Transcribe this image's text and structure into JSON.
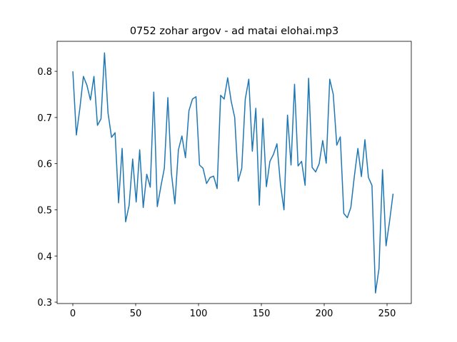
{
  "chart_data": {
    "type": "line",
    "title": "0752 zohar argov - ad matai elohai.mp3",
    "x": [
      0,
      2.8,
      5.6,
      8.4,
      11.2,
      14,
      16.8,
      19.6,
      22.4,
      25.2,
      28,
      30.8,
      33.6,
      36.4,
      39.2,
      42,
      44.8,
      47.6,
      50.4,
      53.2,
      56,
      58.8,
      61.6,
      64.4,
      67.2,
      70,
      72.8,
      75.6,
      78.4,
      81.2,
      84,
      86.8,
      89.6,
      92.4,
      95.2,
      98,
      100.8,
      103.6,
      106.4,
      109.2,
      112,
      114.8,
      117.6,
      120.4,
      123.2,
      126,
      128.8,
      131.6,
      134.4,
      137.2,
      140,
      142.8,
      145.6,
      148.4,
      151.2,
      154,
      156.8,
      159.6,
      162.4,
      165.2,
      168,
      170.8,
      173.6,
      176.4,
      179.2,
      182,
      184.8,
      187.6,
      190.4,
      193.2,
      196,
      198.8,
      201.6,
      204.4,
      207.2,
      210,
      212.8,
      215.6,
      218.4,
      221.2,
      224,
      226.8,
      229.6,
      232.4,
      235.2,
      238,
      240.8,
      243.6,
      246.4,
      249.2,
      252,
      254.8
    ],
    "series": [
      {
        "color": "#1f77b4",
        "values": [
          0.8,
          0.662,
          0.72,
          0.789,
          0.77,
          0.738,
          0.789,
          0.683,
          0.697,
          0.84,
          0.71,
          0.657,
          0.667,
          0.515,
          0.633,
          0.474,
          0.51,
          0.61,
          0.517,
          0.63,
          0.505,
          0.577,
          0.549,
          0.755,
          0.507,
          0.55,
          0.59,
          0.743,
          0.58,
          0.513,
          0.63,
          0.66,
          0.613,
          0.715,
          0.74,
          0.745,
          0.597,
          0.59,
          0.557,
          0.57,
          0.573,
          0.546,
          0.748,
          0.74,
          0.786,
          0.735,
          0.7,
          0.562,
          0.59,
          0.74,
          0.783,
          0.627,
          0.72,
          0.51,
          0.698,
          0.55,
          0.605,
          0.62,
          0.643,
          0.555,
          0.5,
          0.705,
          0.597,
          0.772,
          0.595,
          0.605,
          0.553,
          0.785,
          0.592,
          0.582,
          0.6,
          0.65,
          0.601,
          0.783,
          0.75,
          0.64,
          0.658,
          0.492,
          0.483,
          0.505,
          0.573,
          0.633,
          0.572,
          0.652,
          0.57,
          0.553,
          0.32,
          0.373,
          0.587,
          0.422,
          0.475,
          0.535
        ]
      }
    ],
    "xlim": [
      -12.5,
      269.3
    ],
    "xticks": [
      0,
      50,
      100,
      150,
      200,
      250
    ],
    "ylim": [
      0.297,
      0.865
    ],
    "yticks": [
      0.3,
      0.4,
      0.5,
      0.6,
      0.7,
      0.8
    ]
  }
}
